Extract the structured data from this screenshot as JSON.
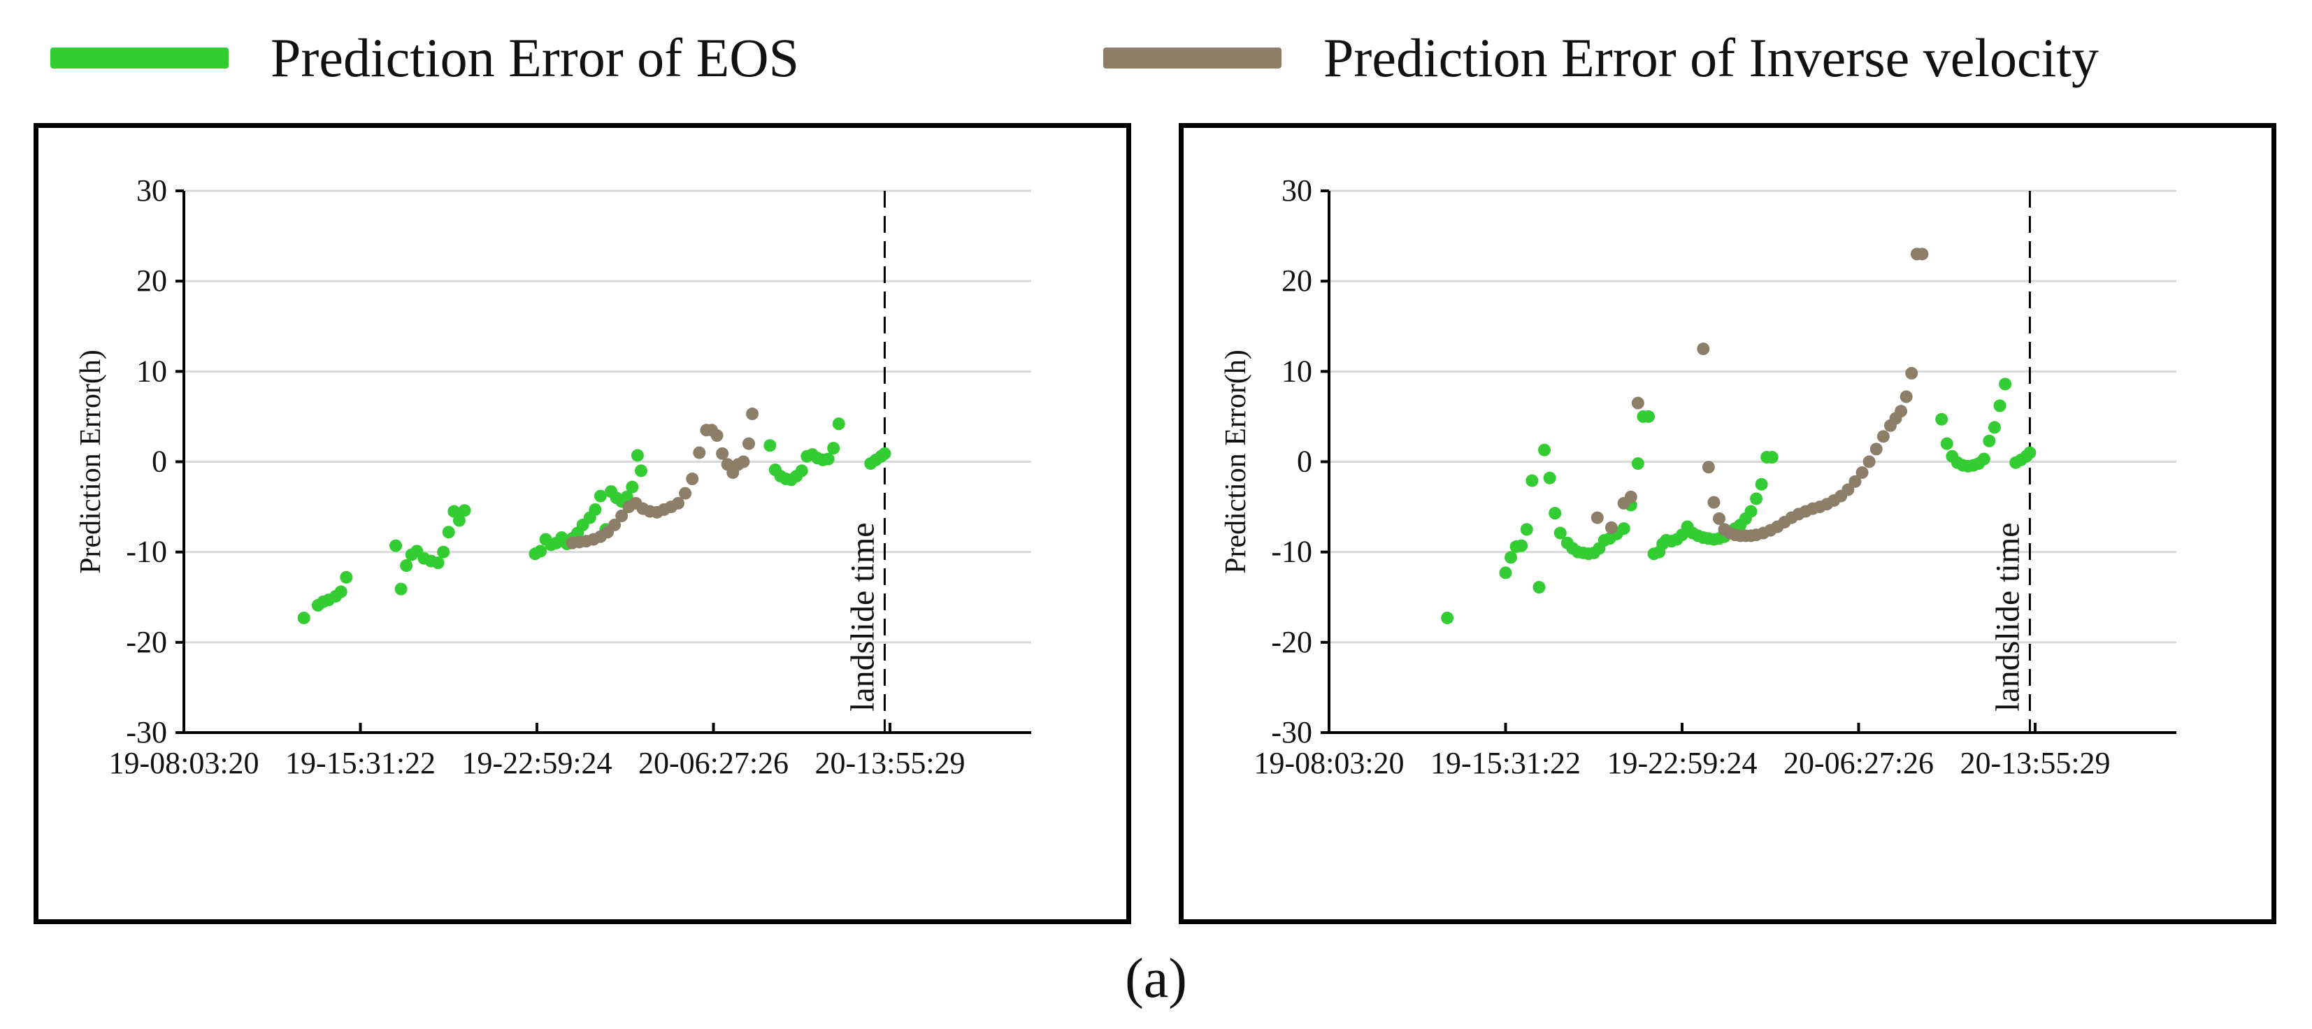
{
  "legend": {
    "eos_label": "Prediction Error of EOS",
    "iv_label": "Prediction Error of Inverse velocity"
  },
  "colors": {
    "eos": "#33cc33",
    "iv": "#8c7e68",
    "grid": "#d9d9d9",
    "axis": "#000000"
  },
  "caption": "(a)",
  "chart_data": [
    {
      "type": "scatter",
      "ylabel": "Prediction Error(h)",
      "xlabel": "",
      "ylim": [
        -30,
        30
      ],
      "yticks": [
        -30,
        -20,
        -10,
        0,
        10,
        20,
        30
      ],
      "xlim": [
        0,
        24
      ],
      "xticks": [
        {
          "pos": 0,
          "label": "19-08:03:20"
        },
        {
          "pos": 5,
          "label": "19-15:31:22"
        },
        {
          "pos": 10,
          "label": "19-22:59:24"
        },
        {
          "pos": 15,
          "label": "20-06:27:26"
        },
        {
          "pos": 20,
          "label": "20-13:55:29"
        }
      ],
      "landslide_x": 19.85,
      "landslide_label": "landslide time",
      "series": [
        {
          "name": "Prediction Error of EOS",
          "x": [
            3.4,
            3.8,
            3.95,
            4.1,
            4.3,
            4.45,
            4.6,
            6.0,
            6.15,
            6.3,
            6.45,
            6.6,
            6.8,
            7.0,
            7.2,
            7.35,
            7.5,
            7.65,
            7.8,
            7.95,
            9.95,
            10.1,
            10.25,
            10.4,
            10.55,
            10.7,
            10.85,
            11.0,
            11.15,
            11.3,
            11.5,
            11.65,
            11.8,
            11.95,
            12.1,
            12.25,
            12.4,
            12.55,
            12.7,
            12.85,
            12.95,
            16.6,
            16.75,
            16.9,
            17.05,
            17.2,
            17.35,
            17.5,
            17.65,
            17.8,
            17.95,
            18.1,
            18.25,
            18.4,
            18.55,
            19.45,
            19.6,
            19.75,
            19.85
          ],
          "y": [
            -17.3,
            -15.9,
            -15.5,
            -15.3,
            -14.9,
            -14.4,
            -12.8,
            -9.3,
            -14.1,
            -11.5,
            -10.3,
            -9.9,
            -10.7,
            -11.0,
            -11.2,
            -10.0,
            -7.8,
            -5.5,
            -6.5,
            -5.4,
            -10.2,
            -9.9,
            -8.6,
            -9.2,
            -9.0,
            -8.4,
            -9.1,
            -8.5,
            -7.9,
            -7.0,
            -6.2,
            -5.3,
            -3.8,
            -7.5,
            -3.3,
            -4.0,
            -4.4,
            -3.9,
            -2.8,
            0.7,
            -1.0,
            1.8,
            -0.9,
            -1.6,
            -1.9,
            -2.0,
            -1.6,
            -1.0,
            0.6,
            0.8,
            0.4,
            0.2,
            0.3,
            1.5,
            4.2,
            -0.2,
            0.2,
            0.6,
            0.9
          ]
        },
        {
          "name": "Prediction Error of Inverse velocity",
          "x": [
            11.0,
            11.2,
            11.4,
            11.6,
            11.8,
            12.0,
            12.2,
            12.4,
            12.6,
            12.8,
            13.0,
            13.2,
            13.4,
            13.6,
            13.8,
            14.0,
            14.2,
            14.4,
            14.6,
            14.8,
            14.95,
            15.1,
            15.25,
            15.4,
            15.55,
            15.7,
            15.85,
            16.0,
            16.1
          ],
          "y": [
            -9.0,
            -8.9,
            -8.8,
            -8.6,
            -8.3,
            -7.8,
            -7.0,
            -6.0,
            -5.0,
            -4.6,
            -5.2,
            -5.5,
            -5.6,
            -5.3,
            -5.0,
            -4.6,
            -3.5,
            -1.9,
            1.0,
            3.5,
            3.5,
            2.9,
            0.9,
            -0.3,
            -1.2,
            -0.3,
            0.0,
            2.0,
            5.3
          ]
        }
      ]
    },
    {
      "type": "scatter",
      "ylabel": "Prediction Error(h)",
      "xlabel": "",
      "ylim": [
        -30,
        30
      ],
      "yticks": [
        -30,
        -20,
        -10,
        0,
        10,
        20,
        30
      ],
      "xlim": [
        0,
        24
      ],
      "xticks": [
        {
          "pos": 0,
          "label": "19-08:03:20"
        },
        {
          "pos": 5,
          "label": "19-15:31:22"
        },
        {
          "pos": 10,
          "label": "19-22:59:24"
        },
        {
          "pos": 15,
          "label": "20-06:27:26"
        },
        {
          "pos": 20,
          "label": "20-13:55:29"
        }
      ],
      "landslide_x": 19.85,
      "landslide_label": "landslide time",
      "series": [
        {
          "name": "Prediction Error of EOS",
          "x": [
            3.35,
            5.0,
            5.15,
            5.3,
            5.45,
            5.6,
            5.75,
            5.95,
            6.1,
            6.25,
            6.4,
            6.55,
            6.75,
            6.9,
            7.05,
            7.2,
            7.35,
            7.5,
            7.65,
            7.8,
            7.95,
            8.15,
            8.35,
            8.55,
            8.75,
            8.9,
            9.05,
            9.2,
            9.35,
            9.45,
            9.55,
            9.7,
            9.85,
            10.0,
            10.15,
            10.3,
            10.45,
            10.6,
            10.75,
            10.9,
            11.05,
            11.2,
            11.35,
            11.5,
            11.65,
            11.8,
            11.95,
            12.1,
            12.25,
            12.4,
            12.55,
            17.35,
            17.5,
            17.65,
            17.8,
            17.95,
            18.1,
            18.25,
            18.4,
            18.55,
            18.7,
            18.85,
            19.0,
            19.15,
            19.45,
            19.6,
            19.75,
            19.85
          ],
          "y": [
            -17.3,
            -12.3,
            -10.6,
            -9.4,
            -9.3,
            -7.5,
            -2.1,
            -13.9,
            1.3,
            -1.8,
            -5.7,
            -7.9,
            -9.0,
            -9.6,
            -10.0,
            -10.1,
            -10.2,
            -10.1,
            -9.6,
            -8.7,
            -8.5,
            -8.0,
            -7.4,
            -4.8,
            -0.2,
            5.0,
            5.0,
            -10.2,
            -10.0,
            -9.1,
            -8.7,
            -8.8,
            -8.6,
            -8.1,
            -7.2,
            -7.9,
            -8.2,
            -8.4,
            -8.5,
            -8.6,
            -8.5,
            -8.3,
            -7.7,
            -7.4,
            -7.0,
            -6.3,
            -5.5,
            -4.1,
            -2.5,
            0.5,
            0.5,
            4.7,
            2.0,
            0.6,
            -0.1,
            -0.4,
            -0.5,
            -0.4,
            -0.2,
            0.3,
            2.3,
            3.8,
            6.2,
            8.6,
            -0.1,
            0.2,
            0.6,
            1.0
          ]
        },
        {
          "name": "Prediction Error of Inverse velocity",
          "x": [
            7.6,
            8.0,
            8.35,
            8.55,
            8.75,
            10.6,
            10.75,
            10.9,
            11.05,
            11.2,
            11.35,
            11.5,
            11.65,
            11.8,
            11.95,
            12.1,
            12.3,
            12.5,
            12.7,
            12.9,
            13.1,
            13.3,
            13.5,
            13.7,
            13.9,
            14.1,
            14.3,
            14.5,
            14.7,
            14.9,
            15.1,
            15.3,
            15.5,
            15.7,
            15.9,
            16.05,
            16.2,
            16.35,
            16.5,
            16.65,
            16.8
          ],
          "y": [
            -6.2,
            -7.3,
            -4.6,
            -3.9,
            6.5,
            12.5,
            -0.6,
            -4.5,
            -6.3,
            -7.5,
            -7.9,
            -8.1,
            -8.2,
            -8.2,
            -8.2,
            -8.1,
            -7.9,
            -7.6,
            -7.2,
            -6.7,
            -6.2,
            -5.8,
            -5.5,
            -5.2,
            -5.0,
            -4.7,
            -4.3,
            -3.8,
            -3.1,
            -2.2,
            -1.2,
            0.0,
            1.4,
            2.8,
            4.0,
            4.8,
            5.6,
            7.2,
            9.8,
            23.0,
            23.0
          ]
        }
      ]
    }
  ]
}
